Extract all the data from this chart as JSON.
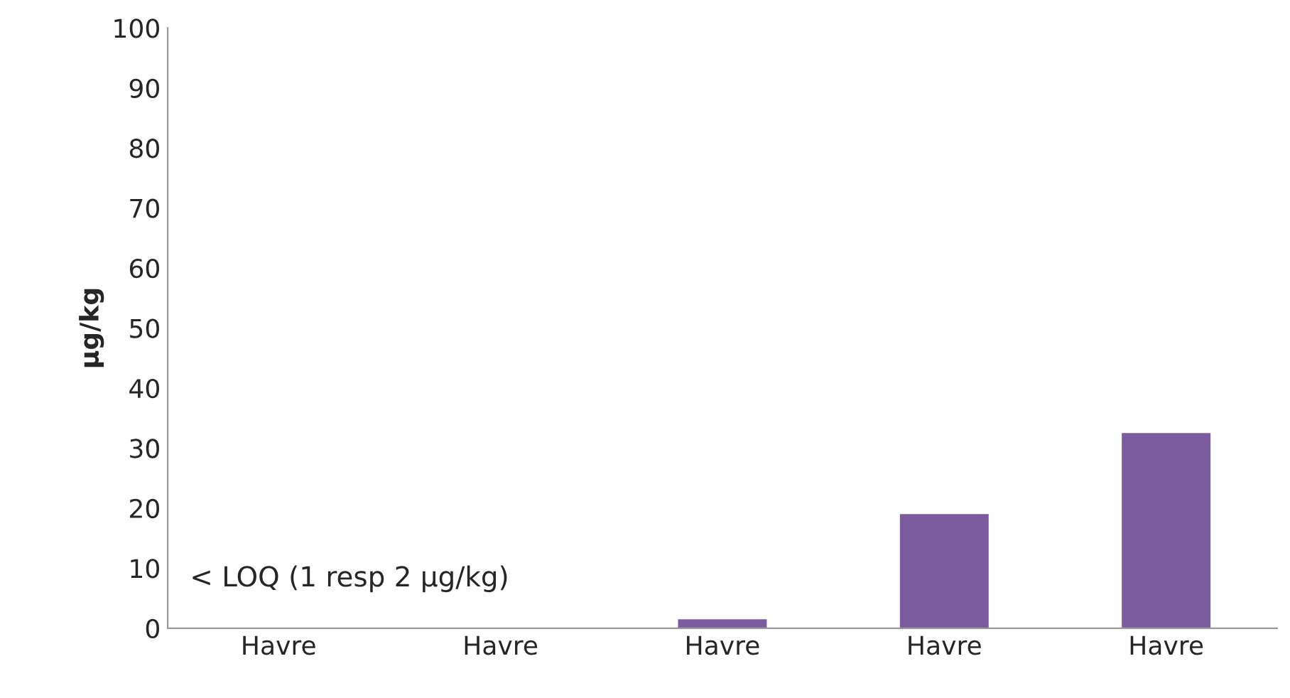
{
  "chart_data": {
    "type": "bar",
    "ylabel": "µg/kg",
    "categories": [
      "Havre",
      "Havre",
      "Havre",
      "Havre",
      "Havre"
    ],
    "values": [
      null,
      null,
      1.5,
      19,
      32.5
    ],
    "color": "#7a5c9e",
    "ylim": [
      0,
      100
    ],
    "yticks": [
      0,
      10,
      20,
      30,
      40,
      50,
      60,
      70,
      80,
      90,
      100
    ],
    "grid": false,
    "legend": false,
    "annotations": [
      "< LOQ (1 resp 2 µg/kg)"
    ]
  }
}
